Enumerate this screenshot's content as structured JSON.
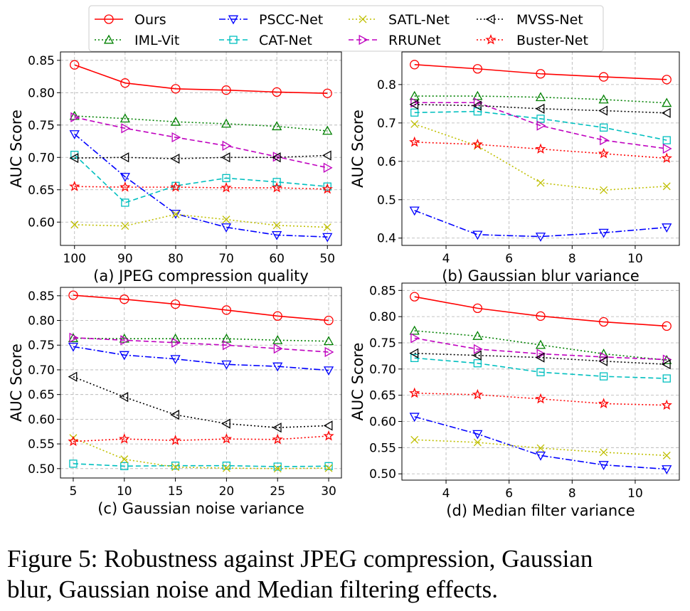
{
  "chart_data": [
    {
      "type": "line",
      "x_label": "(a) JPEG compression quality",
      "y_label": "AUC Score",
      "grid": true,
      "categories": [
        100,
        90,
        80,
        70,
        60,
        50
      ],
      "ylim": [
        0.564,
        0.863
      ],
      "yticks": [
        {
          "value": 0.6,
          "label": "0.60"
        },
        0.65,
        {
          "value": 0.7,
          "label": "0.70"
        },
        0.75,
        {
          "value": 0.8,
          "label": "0.80"
        },
        0.85
      ],
      "series": [
        {
          "name": "Ours",
          "color": "#ff0000",
          "marker": "circle",
          "dash": "solid",
          "values": [
            0.843,
            0.815,
            0.806,
            0.804,
            0.801,
            0.799
          ]
        },
        {
          "name": "IML-Vit",
          "color": "#008000",
          "marker": "triangle-up",
          "dash": "dotted",
          "values": [
            0.764,
            0.76,
            0.755,
            0.752,
            0.748,
            0.741
          ]
        },
        {
          "name": "PSCC-Net",
          "color": "#0000ff",
          "marker": "triangle-down",
          "dash": "dashdot",
          "values": [
            0.736,
            0.67,
            0.613,
            0.592,
            0.58,
            0.577
          ]
        },
        {
          "name": "CAT-Net",
          "color": "#00bfbf",
          "marker": "square",
          "dash": "dashed",
          "values": [
            0.704,
            0.63,
            0.656,
            0.668,
            0.662,
            0.655
          ]
        },
        {
          "name": "SATL-Net",
          "color": "#bfbf00",
          "marker": "x",
          "dash": "dotted",
          "values": [
            0.596,
            0.594,
            0.612,
            0.604,
            0.595,
            0.592
          ]
        },
        {
          "name": "RRUNet",
          "color": "#bf00bf",
          "marker": "triangle-right",
          "dash": "dashed",
          "values": [
            0.762,
            0.745,
            0.731,
            0.718,
            0.701,
            0.684
          ]
        },
        {
          "name": "MVSS-Net",
          "color": "#000000",
          "marker": "triangle-left",
          "dash": "dotted",
          "values": [
            0.699,
            0.7,
            0.698,
            0.7,
            0.7,
            0.703
          ]
        },
        {
          "name": "Buster-Net",
          "color": "#ff0000",
          "marker": "star",
          "dash": "dotted",
          "values": [
            0.655,
            0.654,
            0.654,
            0.653,
            0.653,
            0.651
          ]
        }
      ]
    },
    {
      "type": "line",
      "x_label": "(b) Gaussian blur variance",
      "y_label": "AUC Score",
      "grid": true,
      "x": [
        3,
        5,
        7,
        9,
        11
      ],
      "xlim": [
        2.6,
        11.4
      ],
      "xticks": [
        4,
        6,
        8,
        10
      ],
      "ylim": [
        0.381,
        0.885
      ],
      "yticks": [
        0.4,
        0.5,
        0.6,
        0.7,
        0.8
      ],
      "series": [
        {
          "name": "Ours",
          "color": "#ff0000",
          "marker": "circle",
          "dash": "solid",
          "values": [
            0.852,
            0.841,
            0.828,
            0.82,
            0.813
          ]
        },
        {
          "name": "IML-Vit",
          "color": "#008000",
          "marker": "triangle-up",
          "dash": "dotted",
          "values": [
            0.77,
            0.77,
            0.767,
            0.761,
            0.752
          ]
        },
        {
          "name": "PSCC-Net",
          "color": "#0000ff",
          "marker": "triangle-down",
          "dash": "dashdot",
          "values": [
            0.472,
            0.409,
            0.404,
            0.414,
            0.428
          ]
        },
        {
          "name": "CAT-Net",
          "color": "#00bfbf",
          "marker": "square",
          "dash": "dashed",
          "values": [
            0.727,
            0.73,
            0.711,
            0.688,
            0.655
          ]
        },
        {
          "name": "SATL-Net",
          "color": "#bfbf00",
          "marker": "x",
          "dash": "dotted",
          "values": [
            0.697,
            0.64,
            0.544,
            0.525,
            0.535
          ]
        },
        {
          "name": "RRUNet",
          "color": "#bf00bf",
          "marker": "triangle-right",
          "dash": "dashed",
          "values": [
            0.753,
            0.753,
            0.693,
            0.655,
            0.633
          ]
        },
        {
          "name": "MVSS-Net",
          "color": "#000000",
          "marker": "triangle-left",
          "dash": "dotted",
          "values": [
            0.748,
            0.745,
            0.737,
            0.732,
            0.726
          ]
        },
        {
          "name": "Buster-Net",
          "color": "#ff0000",
          "marker": "star",
          "dash": "dotted",
          "values": [
            0.65,
            0.644,
            0.632,
            0.62,
            0.608
          ]
        }
      ]
    },
    {
      "type": "line",
      "x_label": "(c) Gaussian noise variance",
      "y_label": "AUC Score",
      "grid": true,
      "x": [
        5,
        10,
        15,
        20,
        25,
        30
      ],
      "xlim": [
        3.75,
        31.25
      ],
      "xticks": [
        5,
        10,
        15,
        20,
        25,
        30
      ],
      "ylim": [
        0.481,
        0.867
      ],
      "yticks": [
        {
          "value": 0.5,
          "label": "0.50"
        },
        0.55,
        {
          "value": 0.6,
          "label": "0.60"
        },
        0.65,
        {
          "value": 0.7,
          "label": "0.70"
        },
        0.75,
        {
          "value": 0.8,
          "label": "0.80"
        },
        0.85
      ],
      "series": [
        {
          "name": "Ours",
          "color": "#ff0000",
          "marker": "circle",
          "dash": "solid",
          "values": [
            0.851,
            0.843,
            0.833,
            0.821,
            0.809,
            0.8
          ]
        },
        {
          "name": "IML-Vit",
          "color": "#008000",
          "marker": "triangle-up",
          "dash": "dotted",
          "values": [
            0.764,
            0.763,
            0.763,
            0.763,
            0.76,
            0.758
          ]
        },
        {
          "name": "PSCC-Net",
          "color": "#0000ff",
          "marker": "triangle-down",
          "dash": "dashdot",
          "values": [
            0.747,
            0.73,
            0.722,
            0.711,
            0.707,
            0.699
          ]
        },
        {
          "name": "CAT-Net",
          "color": "#00bfbf",
          "marker": "square",
          "dash": "dashed",
          "values": [
            0.51,
            0.505,
            0.506,
            0.506,
            0.504,
            0.505
          ]
        },
        {
          "name": "SATL-Net",
          "color": "#bfbf00",
          "marker": "x",
          "dash": "dotted",
          "values": [
            0.562,
            0.519,
            0.503,
            0.501,
            0.5,
            0.501
          ]
        },
        {
          "name": "RRUNet",
          "color": "#bf00bf",
          "marker": "triangle-right",
          "dash": "dashed",
          "values": [
            0.765,
            0.76,
            0.755,
            0.75,
            0.743,
            0.736
          ]
        },
        {
          "name": "MVSS-Net",
          "color": "#000000",
          "marker": "triangle-left",
          "dash": "dotted",
          "values": [
            0.686,
            0.645,
            0.609,
            0.591,
            0.583,
            0.587
          ]
        },
        {
          "name": "Buster-Net",
          "color": "#ff0000",
          "marker": "star",
          "dash": "dotted",
          "values": [
            0.555,
            0.56,
            0.557,
            0.56,
            0.559,
            0.566
          ]
        }
      ]
    },
    {
      "type": "line",
      "x_label": "(d) Median filter variance",
      "y_label": "AUC Score",
      "grid": true,
      "x": [
        3,
        5,
        7,
        9,
        11
      ],
      "xlim": [
        2.6,
        11.4
      ],
      "xticks": [
        4,
        6,
        8,
        10
      ],
      "ylim": [
        0.488,
        0.864
      ],
      "yticks": [
        {
          "value": 0.5,
          "label": "0.50"
        },
        0.55,
        {
          "value": 0.6,
          "label": "0.60"
        },
        0.65,
        {
          "value": 0.7,
          "label": "0.70"
        },
        0.75,
        {
          "value": 0.8,
          "label": "0.80"
        },
        0.85
      ],
      "series": [
        {
          "name": "Ours",
          "color": "#ff0000",
          "marker": "circle",
          "dash": "solid",
          "values": [
            0.838,
            0.816,
            0.801,
            0.79,
            0.782
          ]
        },
        {
          "name": "IML-Vit",
          "color": "#008000",
          "marker": "triangle-up",
          "dash": "dotted",
          "values": [
            0.773,
            0.763,
            0.746,
            0.729,
            0.717
          ]
        },
        {
          "name": "PSCC-Net",
          "color": "#0000ff",
          "marker": "triangle-down",
          "dash": "dashdot",
          "values": [
            0.609,
            0.576,
            0.535,
            0.517,
            0.509
          ]
        },
        {
          "name": "CAT-Net",
          "color": "#00bfbf",
          "marker": "square",
          "dash": "dashed",
          "values": [
            0.721,
            0.711,
            0.694,
            0.686,
            0.682
          ]
        },
        {
          "name": "SATL-Net",
          "color": "#bfbf00",
          "marker": "x",
          "dash": "dotted",
          "values": [
            0.565,
            0.56,
            0.549,
            0.541,
            0.535
          ]
        },
        {
          "name": "RRUNet",
          "color": "#bf00bf",
          "marker": "triangle-right",
          "dash": "dashed",
          "values": [
            0.759,
            0.738,
            0.729,
            0.723,
            0.718
          ]
        },
        {
          "name": "MVSS-Net",
          "color": "#000000",
          "marker": "triangle-left",
          "dash": "dotted",
          "values": [
            0.73,
            0.726,
            0.722,
            0.715,
            0.709
          ]
        },
        {
          "name": "Buster-Net",
          "color": "#ff0000",
          "marker": "star",
          "dash": "dotted",
          "values": [
            0.654,
            0.651,
            0.643,
            0.634,
            0.631
          ]
        }
      ]
    }
  ],
  "caption": [
    "Figure 5: Robustness against JPEG compression, Gaussian",
    "blur, Gaussian noise and Median filtering effects."
  ]
}
